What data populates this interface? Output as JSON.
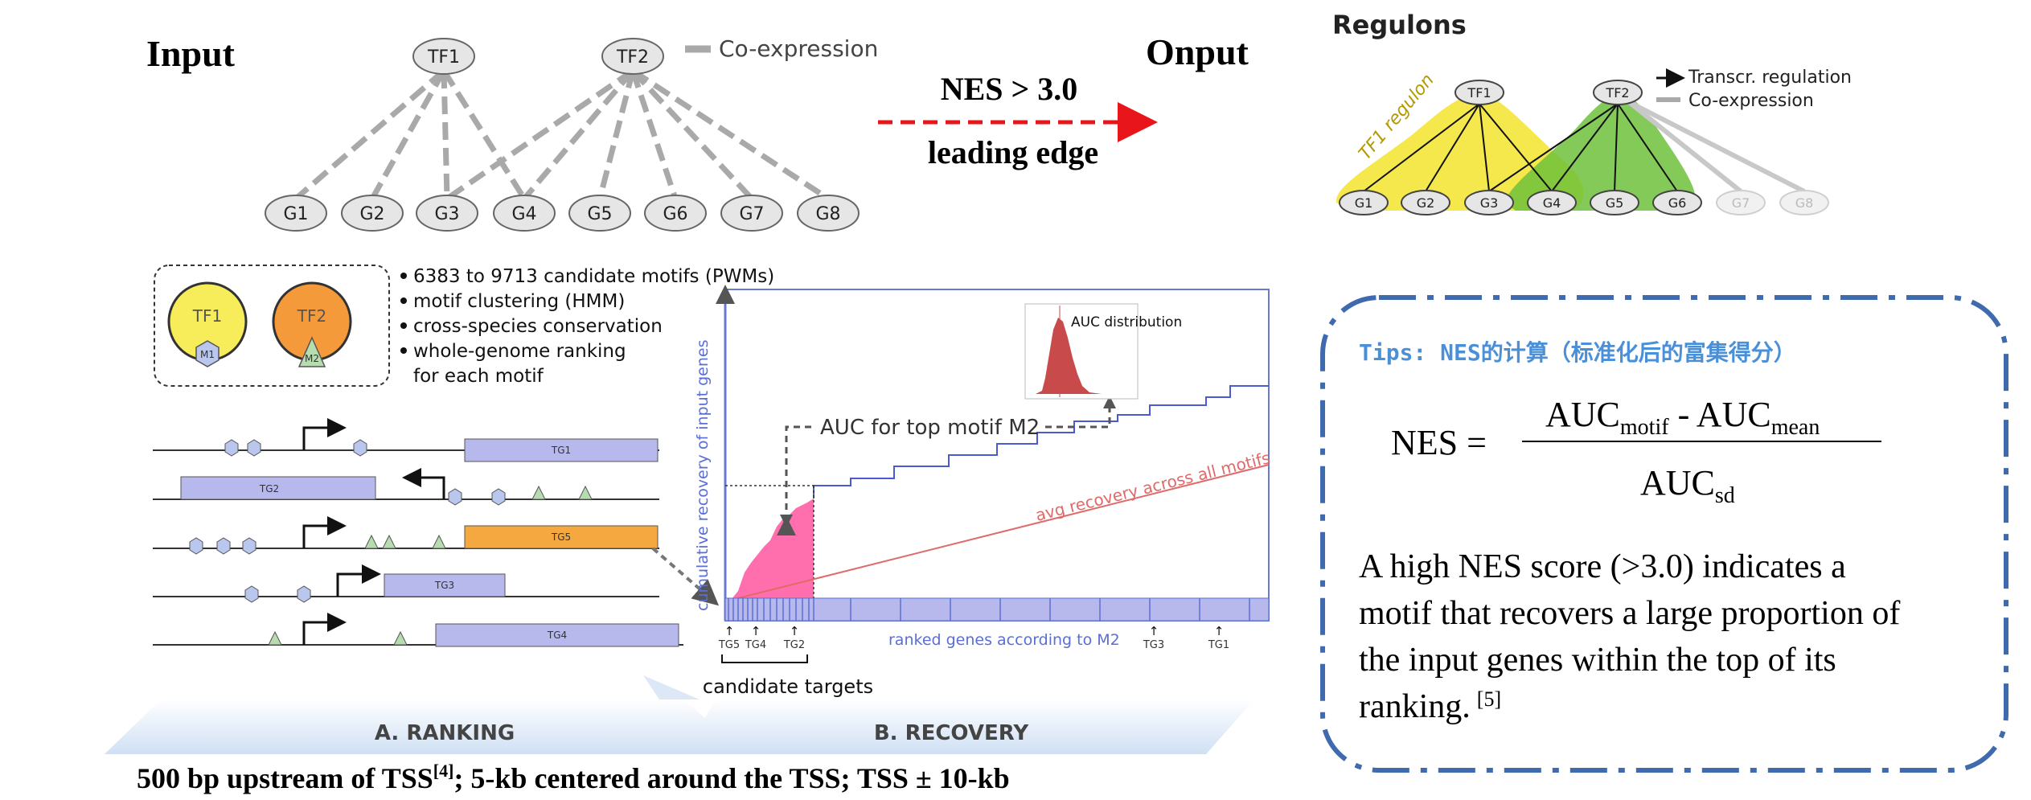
{
  "input_title": "Input",
  "output_title": "Onput",
  "arrow_label_top": "NES > 3.0",
  "arrow_label_bottom": "leading edge",
  "coexp": {
    "legend": "Co-expression",
    "tfs": [
      "TF1",
      "TF2"
    ],
    "genes": [
      "G1",
      "G2",
      "G3",
      "G4",
      "G5",
      "G6",
      "G7",
      "G8"
    ]
  },
  "regulons": {
    "title": "Regulons",
    "legend_transcr": "Transcr. regulation",
    "legend_coexp": "Co-expression",
    "region_label": "TF1 regulon",
    "tfs": [
      "TF1",
      "TF2"
    ],
    "genes": [
      "G1",
      "G2",
      "G3",
      "G4",
      "G5",
      "G6",
      "G7",
      "G8"
    ]
  },
  "motif_box": {
    "tf1": "TF1",
    "tf2": "TF2",
    "m1": "M1",
    "m2": "M2"
  },
  "bullets": [
    "6383 to 9713 candidate motifs (PWMs)",
    "motif clustering (HMM)",
    "cross-species conservation",
    "whole-genome ranking",
    "for each motif"
  ],
  "tracks": [
    "TG1",
    "TG2",
    "TG5",
    "TG3",
    "TG4"
  ],
  "recovery": {
    "ylabel": "cumulative recovery of input genes",
    "auc_label": "AUC for top motif M2",
    "auc_dist": "AUC distribution",
    "avg_label": "avg recovery across all motifs",
    "xlabel": "ranked genes according to M2",
    "ticks_left": [
      "TG5",
      "TG4",
      "TG2"
    ],
    "ticks_right": [
      "TG3",
      "TG1"
    ],
    "candidate": "candidate targets"
  },
  "section_a": "A. RANKING",
  "section_b": "B. RECOVERY",
  "bottom_note": "500 bp upstream of TSS",
  "bottom_ref": "[4]",
  "bottom_rest": "; 5-kb centered around the TSS; TSS ± 10-kb",
  "tips": {
    "title": "Tips: NES的计算（标准化后的富集得分）",
    "nes": "NES =",
    "auc": "AUC",
    "sub_motif": "motif",
    "minus": " - AUC",
    "sub_mean": "mean",
    "sub_sd": "sd",
    "desc_lines": [
      "A high NES score (>3.0) indicates a",
      "motif that recovers a large proportion of",
      "the input genes within the top of its",
      "ranking."
    ],
    "ref": "[5]"
  },
  "colors": {
    "blue": "#5b6ed6",
    "pink": "#ff6fae",
    "red_arrow": "#e8161b",
    "yellow": "#f4e63a",
    "green": "#6ec13b",
    "orange": "#f4a53a",
    "dash_box": "#3f6aad"
  }
}
